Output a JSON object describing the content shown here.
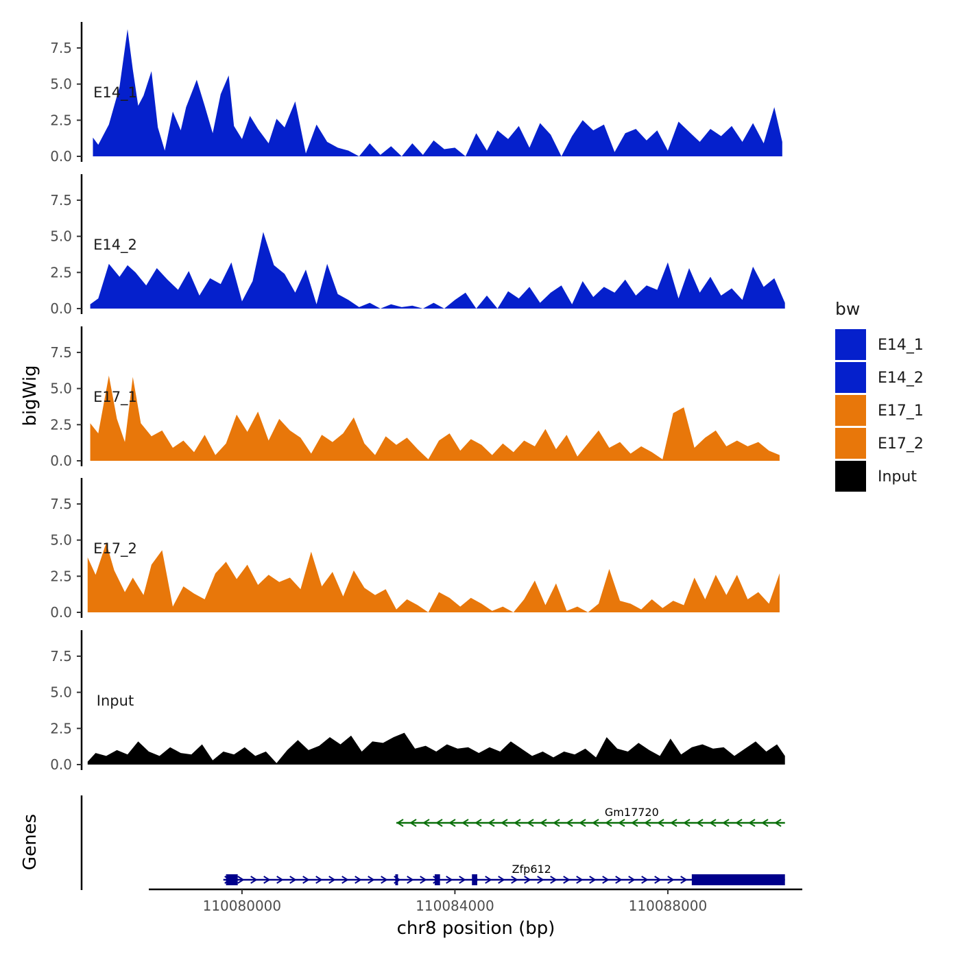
{
  "chart_data": {
    "type": "area",
    "chromosome": "chr8",
    "xlabel": "chr8 position (bp)",
    "ylabel": "bigWig",
    "genes_label": "Genes",
    "xlim": [
      110077000,
      110090500
    ],
    "ylim": [
      0,
      9.3
    ],
    "x_ticks": [
      110080000,
      110084000,
      110088000
    ],
    "x_tick_labels": [
      "110080000",
      "110084000",
      "110088000"
    ],
    "y_ticks": [
      0,
      2.5,
      5,
      7.5
    ],
    "y_tick_labels": [
      "0.0",
      "2.5",
      "5.0",
      "7.5"
    ],
    "legend": {
      "title": "bw",
      "entries": [
        {
          "label": "E14_1",
          "color": "#0520CC"
        },
        {
          "label": "E14_2",
          "color": "#0520CC"
        },
        {
          "label": "E17_1",
          "color": "#E8770A"
        },
        {
          "label": "E17_2",
          "color": "#E8770A"
        },
        {
          "label": "Input",
          "color": "#000000"
        }
      ]
    },
    "series": [
      {
        "name": "E14_1",
        "color": "#0520CC",
        "x": [
          110077200,
          110077300,
          110077500,
          110077700,
          110077850,
          110077950,
          110078050,
          110078150,
          110078300,
          110078420,
          110078550,
          110078700,
          110078850,
          110078950,
          110079150,
          110079300,
          110079450,
          110079600,
          110079750,
          110079850,
          110080000,
          110080150,
          110080300,
          110080500,
          110080650,
          110080800,
          110081000,
          110081200,
          110081400,
          110081600,
          110081800,
          110082000,
          110082200,
          110082400,
          110082600,
          110082800,
          110083000,
          110083200,
          110083400,
          110083600,
          110083800,
          110084000,
          110084200,
          110084400,
          110084600,
          110084800,
          110085000,
          110085200,
          110085400,
          110085600,
          110085800,
          110086000,
          110086200,
          110086400,
          110086600,
          110086800,
          110087000,
          110087200,
          110087400,
          110087600,
          110087800,
          110088000,
          110088200,
          110088400,
          110088600,
          110088800,
          110089000,
          110089200,
          110089400,
          110089600,
          110089800,
          110090000,
          110090150
        ],
        "values": [
          1.3,
          0.8,
          2.2,
          4.8,
          8.8,
          6.0,
          3.5,
          4.2,
          5.9,
          2.0,
          0.4,
          3.1,
          1.8,
          3.4,
          5.3,
          3.5,
          1.6,
          4.3,
          5.6,
          2.1,
          1.2,
          2.8,
          1.9,
          0.9,
          2.6,
          2.0,
          3.8,
          0.2,
          2.2,
          1.0,
          0.6,
          0.4,
          0.0,
          0.9,
          0.1,
          0.7,
          0.0,
          0.9,
          0.1,
          1.1,
          0.5,
          0.6,
          0.0,
          1.6,
          0.4,
          1.8,
          1.2,
          2.1,
          0.6,
          2.3,
          1.5,
          0.0,
          1.4,
          2.5,
          1.8,
          2.2,
          0.3,
          1.6,
          1.9,
          1.1,
          1.8,
          0.4,
          2.4,
          1.7,
          1.0,
          1.9,
          1.4,
          2.1,
          1.0,
          2.3,
          0.9,
          3.4,
          1.0
        ]
      },
      {
        "name": "E14_2",
        "color": "#0520CC",
        "x": [
          110077150,
          110077300,
          110077500,
          110077700,
          110077850,
          110078000,
          110078200,
          110078400,
          110078600,
          110078800,
          110079000,
          110079200,
          110079400,
          110079600,
          110079800,
          110080000,
          110080200,
          110080400,
          110080600,
          110080800,
          110081000,
          110081200,
          110081400,
          110081600,
          110081800,
          110082000,
          110082200,
          110082400,
          110082600,
          110082800,
          110083000,
          110083200,
          110083400,
          110083600,
          110083800,
          110084000,
          110084200,
          110084400,
          110084600,
          110084800,
          110085000,
          110085200,
          110085400,
          110085600,
          110085800,
          110086000,
          110086200,
          110086400,
          110086600,
          110086800,
          110087000,
          110087200,
          110087400,
          110087600,
          110087800,
          110088000,
          110088200,
          110088400,
          110088600,
          110088800,
          110089000,
          110089200,
          110089400,
          110089600,
          110089800,
          110090000,
          110090200
        ],
        "values": [
          0.3,
          0.7,
          3.1,
          2.2,
          3.0,
          2.5,
          1.6,
          2.8,
          2.0,
          1.3,
          2.6,
          0.9,
          2.1,
          1.7,
          3.2,
          0.5,
          1.9,
          5.3,
          3.0,
          2.4,
          1.1,
          2.7,
          0.3,
          3.1,
          1.0,
          0.6,
          0.1,
          0.4,
          0.0,
          0.3,
          0.1,
          0.2,
          0.0,
          0.4,
          0.0,
          0.6,
          1.1,
          0.0,
          0.9,
          0.0,
          1.2,
          0.7,
          1.5,
          0.4,
          1.1,
          1.6,
          0.3,
          1.9,
          0.8,
          1.5,
          1.1,
          2.0,
          0.9,
          1.6,
          1.3,
          3.2,
          0.7,
          2.8,
          1.1,
          2.2,
          0.9,
          1.4,
          0.6,
          2.9,
          1.5,
          2.1,
          0.4
        ]
      },
      {
        "name": "E17_1",
        "color": "#E8770A",
        "x": [
          110077150,
          110077300,
          110077500,
          110077650,
          110077800,
          110077950,
          110078100,
          110078300,
          110078500,
          110078700,
          110078900,
          110079100,
          110079300,
          110079500,
          110079700,
          110079900,
          110080100,
          110080300,
          110080500,
          110080700,
          110080900,
          110081100,
          110081300,
          110081500,
          110081700,
          110081900,
          110082100,
          110082300,
          110082500,
          110082700,
          110082900,
          110083100,
          110083300,
          110083500,
          110083700,
          110083900,
          110084100,
          110084300,
          110084500,
          110084700,
          110084900,
          110085100,
          110085300,
          110085500,
          110085700,
          110085900,
          110086100,
          110086300,
          110086500,
          110086700,
          110086900,
          110087100,
          110087300,
          110087500,
          110087700,
          110087900,
          110088100,
          110088300,
          110088500,
          110088700,
          110088900,
          110089100,
          110089300,
          110089500,
          110089700,
          110089900,
          110090100
        ],
        "values": [
          2.6,
          1.9,
          5.9,
          2.9,
          1.3,
          5.8,
          2.6,
          1.7,
          2.1,
          0.9,
          1.4,
          0.6,
          1.8,
          0.4,
          1.2,
          3.2,
          2.0,
          3.4,
          1.4,
          2.9,
          2.1,
          1.6,
          0.5,
          1.8,
          1.3,
          1.9,
          3.0,
          1.2,
          0.4,
          1.7,
          1.1,
          1.6,
          0.8,
          0.1,
          1.4,
          1.9,
          0.7,
          1.5,
          1.1,
          0.4,
          1.2,
          0.6,
          1.4,
          1.0,
          2.2,
          0.8,
          1.8,
          0.3,
          1.2,
          2.1,
          0.9,
          1.3,
          0.5,
          1.0,
          0.6,
          0.1,
          3.3,
          3.7,
          0.9,
          1.6,
          2.1,
          1.0,
          1.4,
          1.0,
          1.3,
          0.7,
          0.4
        ]
      },
      {
        "name": "E17_2",
        "color": "#E8770A",
        "x": [
          110077100,
          110077250,
          110077450,
          110077600,
          110077800,
          110077950,
          110078150,
          110078300,
          110078500,
          110078700,
          110078900,
          110079100,
          110079300,
          110079500,
          110079700,
          110079900,
          110080100,
          110080300,
          110080500,
          110080700,
          110080900,
          110081100,
          110081300,
          110081500,
          110081700,
          110081900,
          110082100,
          110082300,
          110082500,
          110082700,
          110082900,
          110083100,
          110083300,
          110083500,
          110083700,
          110083900,
          110084100,
          110084300,
          110084500,
          110084700,
          110084900,
          110085100,
          110085300,
          110085500,
          110085700,
          110085900,
          110086100,
          110086300,
          110086500,
          110086700,
          110086900,
          110087100,
          110087300,
          110087500,
          110087700,
          110087900,
          110088100,
          110088300,
          110088500,
          110088700,
          110088900,
          110089100,
          110089300,
          110089500,
          110089700,
          110089900,
          110090100
        ],
        "values": [
          3.8,
          2.6,
          4.8,
          2.9,
          1.4,
          2.4,
          1.2,
          3.3,
          4.3,
          0.4,
          1.8,
          1.3,
          0.9,
          2.7,
          3.5,
          2.3,
          3.3,
          1.9,
          2.6,
          2.1,
          2.4,
          1.6,
          4.2,
          1.8,
          2.8,
          1.1,
          2.9,
          1.7,
          1.2,
          1.6,
          0.2,
          0.9,
          0.5,
          0.0,
          1.4,
          1.0,
          0.4,
          1.0,
          0.6,
          0.1,
          0.4,
          0.0,
          0.9,
          2.2,
          0.5,
          2.0,
          0.1,
          0.4,
          0.0,
          0.6,
          3.0,
          0.8,
          0.6,
          0.2,
          0.9,
          0.3,
          0.8,
          0.5,
          2.4,
          0.9,
          2.6,
          1.2,
          2.6,
          0.9,
          1.4,
          0.6,
          2.7
        ]
      },
      {
        "name": "Input",
        "color": "#000000",
        "x": [
          110077100,
          110077250,
          110077450,
          110077650,
          110077850,
          110078050,
          110078250,
          110078450,
          110078650,
          110078850,
          110079050,
          110079250,
          110079450,
          110079650,
          110079850,
          110080050,
          110080250,
          110080450,
          110080650,
          110080850,
          110081050,
          110081250,
          110081450,
          110081650,
          110081850,
          110082050,
          110082250,
          110082450,
          110082650,
          110082850,
          110083050,
          110083250,
          110083450,
          110083650,
          110083850,
          110084050,
          110084250,
          110084450,
          110084650,
          110084850,
          110085050,
          110085250,
          110085450,
          110085650,
          110085850,
          110086050,
          110086250,
          110086450,
          110086650,
          110086850,
          110087050,
          110087250,
          110087450,
          110087650,
          110087850,
          110088050,
          110088250,
          110088450,
          110088650,
          110088850,
          110089050,
          110089250,
          110089450,
          110089650,
          110089850,
          110090050,
          110090200
        ],
        "values": [
          0.2,
          0.8,
          0.6,
          1.0,
          0.7,
          1.6,
          0.9,
          0.6,
          1.2,
          0.8,
          0.7,
          1.4,
          0.3,
          0.9,
          0.7,
          1.2,
          0.6,
          0.9,
          0.1,
          1.0,
          1.7,
          1.0,
          1.3,
          1.9,
          1.4,
          2.0,
          0.9,
          1.6,
          1.5,
          1.9,
          2.2,
          1.1,
          1.3,
          0.9,
          1.4,
          1.1,
          1.2,
          0.8,
          1.2,
          0.9,
          1.6,
          1.1,
          0.6,
          0.9,
          0.5,
          0.9,
          0.7,
          1.1,
          0.5,
          1.9,
          1.1,
          0.9,
          1.5,
          1.0,
          0.6,
          1.8,
          0.7,
          1.2,
          1.4,
          1.1,
          1.2,
          0.6,
          1.1,
          1.6,
          0.9,
          1.4,
          0.6
        ]
      }
    ],
    "genes": [
      {
        "name": "Gm17720",
        "color": "#0A6F0A",
        "strand": "-",
        "start": 110082900,
        "end": 110090200,
        "exons": []
      },
      {
        "name": "Zfp612",
        "color": "#00008B",
        "strand": "+",
        "start": 110079650,
        "end": 110090200,
        "exons": [
          [
            110079700,
            110079920
          ],
          [
            110082880,
            110082920
          ],
          [
            110083620,
            110083720
          ],
          [
            110084320,
            110084420
          ],
          [
            110088450,
            110090200
          ]
        ]
      }
    ]
  }
}
